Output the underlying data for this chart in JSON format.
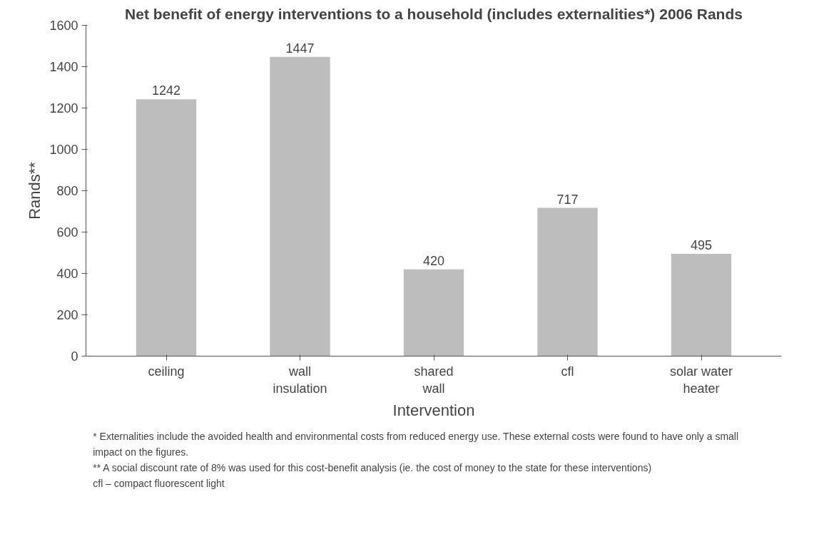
{
  "chart_data": {
    "type": "bar",
    "title": "Net benefit of energy interventions to a household (includes externalities*) 2006 Rands",
    "xlabel": "Intervention",
    "ylabel": "Rands**",
    "categories": [
      "ceiling",
      "wall insulation",
      "shared wall",
      "cfl",
      "solar water heater"
    ],
    "values": [
      1242,
      1447,
      420,
      717,
      495
    ],
    "color": "#bdbdbd",
    "ylim": [
      0,
      1600
    ],
    "yticks": [
      0,
      200,
      400,
      600,
      800,
      1000,
      1200,
      1400,
      1600
    ],
    "grid": false,
    "data_labels": true,
    "annotations": [
      "* Externalities include the avoided health and environmental costs from reduced energy use. These external costs were found to have only a small impact on the figures.",
      "** A social discount rate of 8% was used for this cost-benefit analysis (ie. the cost of money to the state for these interventions)",
      "cfl – compact fluorescent light"
    ]
  }
}
